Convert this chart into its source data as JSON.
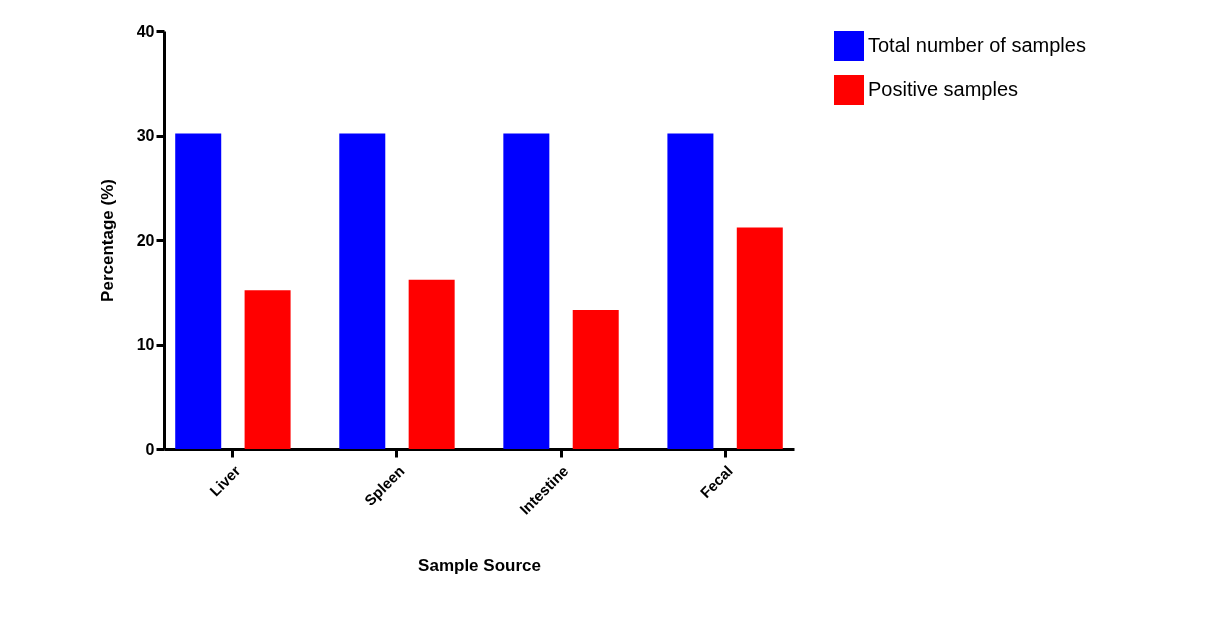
{
  "chart_data": {
    "type": "bar",
    "xlabel": "Sample Source",
    "ylabel": "Percentage (%)",
    "categories": [
      "Liver",
      "Spleen",
      "Intestine",
      "Fecal"
    ],
    "series": [
      {
        "name": "Total number of samples",
        "color": "#0000ff",
        "values": [
          30.2,
          30.2,
          30.2,
          30.2
        ]
      },
      {
        "name": "Positive samples",
        "color": "#ff0000",
        "values": [
          15.2,
          16.2,
          13.3,
          21.2
        ]
      }
    ],
    "ylim": [
      0,
      40
    ],
    "yticks": [
      0,
      10,
      20,
      30,
      40
    ],
    "grid": false,
    "legend": "top right"
  }
}
